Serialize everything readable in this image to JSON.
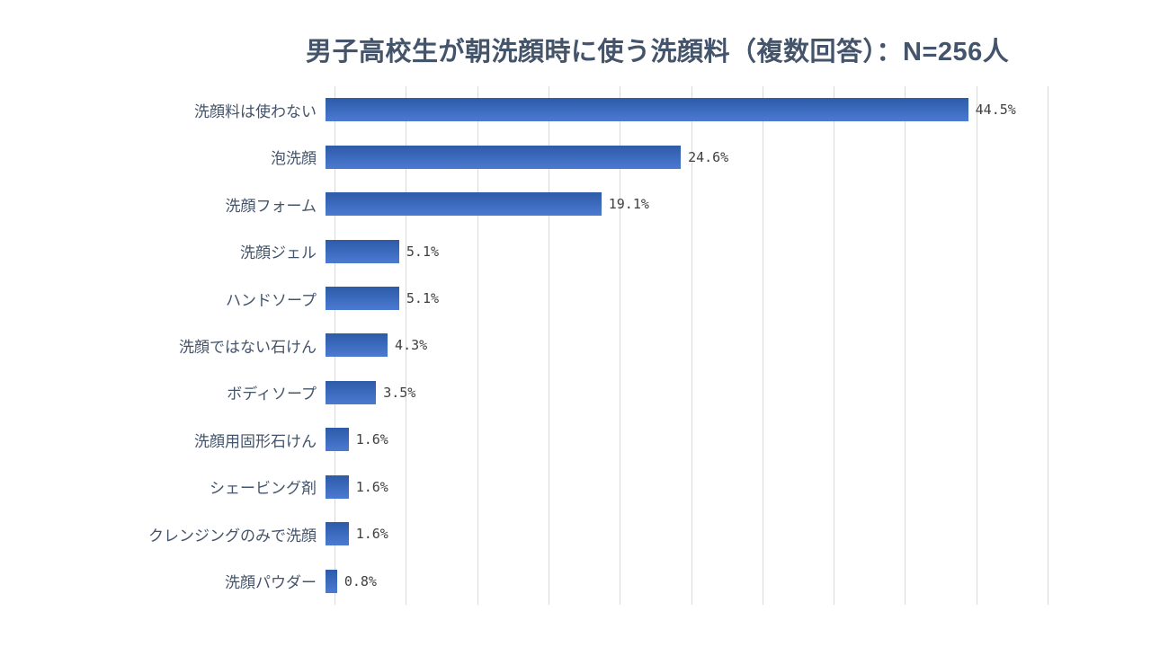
{
  "title": "男子高校生が朝洗顔時に使う洗顔料（複数回答）：N=256人",
  "chart_data": {
    "type": "bar",
    "orientation": "horizontal",
    "title": "男子高校生が朝洗顔時に使う洗顔料（複数回答）：N=256人",
    "sample_size_note": "N=256人",
    "categories": [
      "洗顔料は使わない",
      "泡洗顔",
      "洗顔フォーム",
      "洗顔ジェル",
      "ハンドソープ",
      "洗顔ではない石けん",
      "ボディソープ",
      "洗顔用固形石けん",
      "シェービング剤",
      "クレンジングのみで洗顔",
      "洗顔パウダー"
    ],
    "values": [
      44.5,
      24.6,
      19.1,
      5.1,
      5.1,
      4.3,
      3.5,
      1.6,
      1.6,
      1.6,
      0.8
    ],
    "value_labels": [
      "44.5%",
      "24.6%",
      "19.1%",
      "5.1%",
      "5.1%",
      "4.3%",
      "3.5%",
      "1.6%",
      "1.6%",
      "1.6%",
      "0.8%"
    ],
    "xlabel": "",
    "ylabel": "",
    "xlim": [
      0,
      50
    ],
    "gridline_step": 5,
    "grid": true,
    "legend": false,
    "axis_tick_labels_visible": false
  },
  "colors": {
    "background": "#FFFFFF",
    "title_text": "#44546A",
    "category_text": "#44546A",
    "value_text": "#404040",
    "bar_gradient_top": "#2E5BA7",
    "bar_gradient_mid": "#3D6CC0",
    "bar_gradient_bottom": "#4B7AD1",
    "gridline": "#D9D9D9"
  }
}
